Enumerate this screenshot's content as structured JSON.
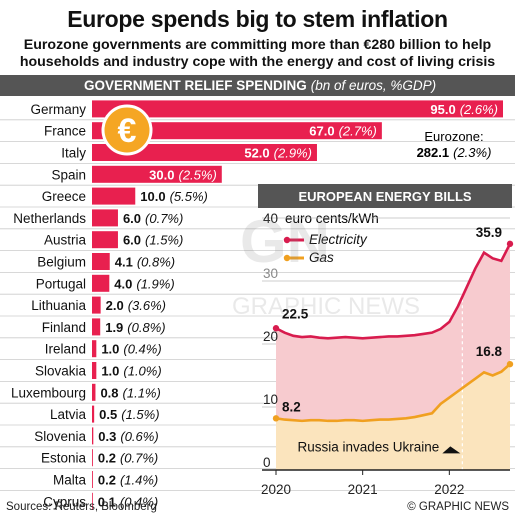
{
  "header": {
    "title": "Europe spends big to stem inflation",
    "subtitle_line1": "Eurozone governments are committing more than €280 billion to help",
    "subtitle_line2": "households and industry cope with the energy and cost of living crisis"
  },
  "band": {
    "title": "GOVERNMENT RELIEF SPENDING",
    "unit": "(bn of euros, %GDP)"
  },
  "colors": {
    "bar": "#e8204f",
    "electricity": "#d81c4e",
    "gas": "#f0a020",
    "band": "#555555",
    "euro_coin": "#f5a623"
  },
  "icons": {
    "euro": "euro-coin-icon"
  },
  "chart_data": [
    {
      "type": "bar",
      "orientation": "horizontal",
      "title": "GOVERNMENT RELIEF SPENDING",
      "unit": "(bn of euros, %GDP)",
      "categories": [
        "Germany",
        "France",
        "Italy",
        "Spain",
        "Greece",
        "Netherlands",
        "Austria",
        "Belgium",
        "Portugal",
        "Lithuania",
        "Finland",
        "Ireland",
        "Slovakia",
        "Luxembourg",
        "Latvia",
        "Slovenia",
        "Estonia",
        "Malta",
        "Cyprus"
      ],
      "values": [
        95.0,
        67.0,
        52.0,
        30.0,
        10.0,
        6.0,
        6.0,
        4.1,
        4.0,
        2.0,
        1.9,
        1.0,
        1.0,
        0.8,
        0.5,
        0.3,
        0.2,
        0.2,
        0.1
      ],
      "value_labels": [
        "95.0",
        "67.0",
        "52.0",
        "30.0",
        "10.0",
        "6.0",
        "6.0",
        "4.1",
        "4.0",
        "2.0",
        "1.9",
        "1.0",
        "1.0",
        "0.8",
        "0.5",
        "0.3",
        "0.2",
        "0.2",
        "0.1"
      ],
      "gdp_labels": [
        "(2.6%)",
        "(2.7%)",
        "(2.9%)",
        "(2.5%)",
        "(5.5%)",
        "(0.7%)",
        "(1.5%)",
        "(0.8%)",
        "(1.9%)",
        "(3.6%)",
        "(0.8%)",
        "(0.4%)",
        "(1.0%)",
        "(1.1%)",
        "(1.5%)",
        "(0.6%)",
        "(0.7%)",
        "(1.4%)",
        "(0.4%)"
      ],
      "eurozone_label": "Eurozone:",
      "eurozone_value": "282.1",
      "eurozone_gdp": "(2.3%)",
      "xlim": [
        0,
        95
      ]
    },
    {
      "type": "area",
      "title": "EUROPEAN ENERGY BILLS",
      "ylabel": "euro cents/kWh",
      "ylim": [
        0,
        40
      ],
      "yticks": [
        "0",
        "10",
        "20",
        "30",
        "40"
      ],
      "xticks": [
        "2020",
        "2021",
        "2022"
      ],
      "xtick_values": [
        2020,
        2021,
        2022
      ],
      "xlim": [
        2020,
        2022.7
      ],
      "series": [
        {
          "name": "Electricity",
          "x": [
            2020.0,
            2020.1,
            2020.2,
            2020.3,
            2020.4,
            2020.5,
            2020.6,
            2020.7,
            2020.8,
            2020.9,
            2021.0,
            2021.1,
            2021.2,
            2021.3,
            2021.4,
            2021.5,
            2021.6,
            2021.7,
            2021.8,
            2021.9,
            2022.0,
            2022.1,
            2022.2,
            2022.3,
            2022.4,
            2022.5,
            2022.6,
            2022.7
          ],
          "values": [
            22.5,
            21.8,
            21.3,
            21.1,
            21.2,
            21.0,
            20.9,
            21.0,
            21.1,
            21.0,
            20.9,
            21.0,
            21.1,
            21.2,
            21.2,
            21.3,
            21.4,
            21.6,
            21.8,
            22.4,
            23.5,
            26.0,
            29.0,
            32.0,
            34.5,
            33.6,
            33.2,
            35.9
          ]
        },
        {
          "name": "Gas",
          "x": [
            2020.0,
            2020.1,
            2020.2,
            2020.3,
            2020.4,
            2020.5,
            2020.6,
            2020.7,
            2020.8,
            2020.9,
            2021.0,
            2021.1,
            2021.2,
            2021.3,
            2021.4,
            2021.5,
            2021.6,
            2021.7,
            2021.8,
            2021.9,
            2022.0,
            2022.1,
            2022.2,
            2022.3,
            2022.4,
            2022.5,
            2022.6,
            2022.7
          ],
          "values": [
            8.2,
            8.0,
            7.9,
            7.8,
            7.9,
            7.9,
            7.8,
            7.8,
            7.9,
            7.9,
            7.8,
            7.9,
            8.0,
            8.0,
            8.1,
            8.2,
            8.4,
            8.7,
            9.0,
            10.5,
            11.5,
            12.5,
            13.5,
            14.5,
            15.5,
            15.0,
            15.6,
            16.8
          ]
        }
      ],
      "annotations": [
        {
          "text": "22.5",
          "x": 2020.0,
          "y": 22.5
        },
        {
          "text": "8.2",
          "x": 2020.0,
          "y": 8.2
        },
        {
          "text": "35.9",
          "x": 2022.7,
          "y": 35.9
        },
        {
          "text": "16.8",
          "x": 2022.7,
          "y": 16.8
        },
        {
          "text": "Russia invades Ukraine",
          "x": 2022.15,
          "y": 0
        }
      ],
      "event_x": 2022.15,
      "legend": "top-left"
    }
  ],
  "watermark": {
    "logo": "GN",
    "text": "GRAPHIC NEWS"
  },
  "footer": {
    "sources": "Sources: Reuters, Bloomberg",
    "credit": "© GRAPHIC NEWS"
  }
}
